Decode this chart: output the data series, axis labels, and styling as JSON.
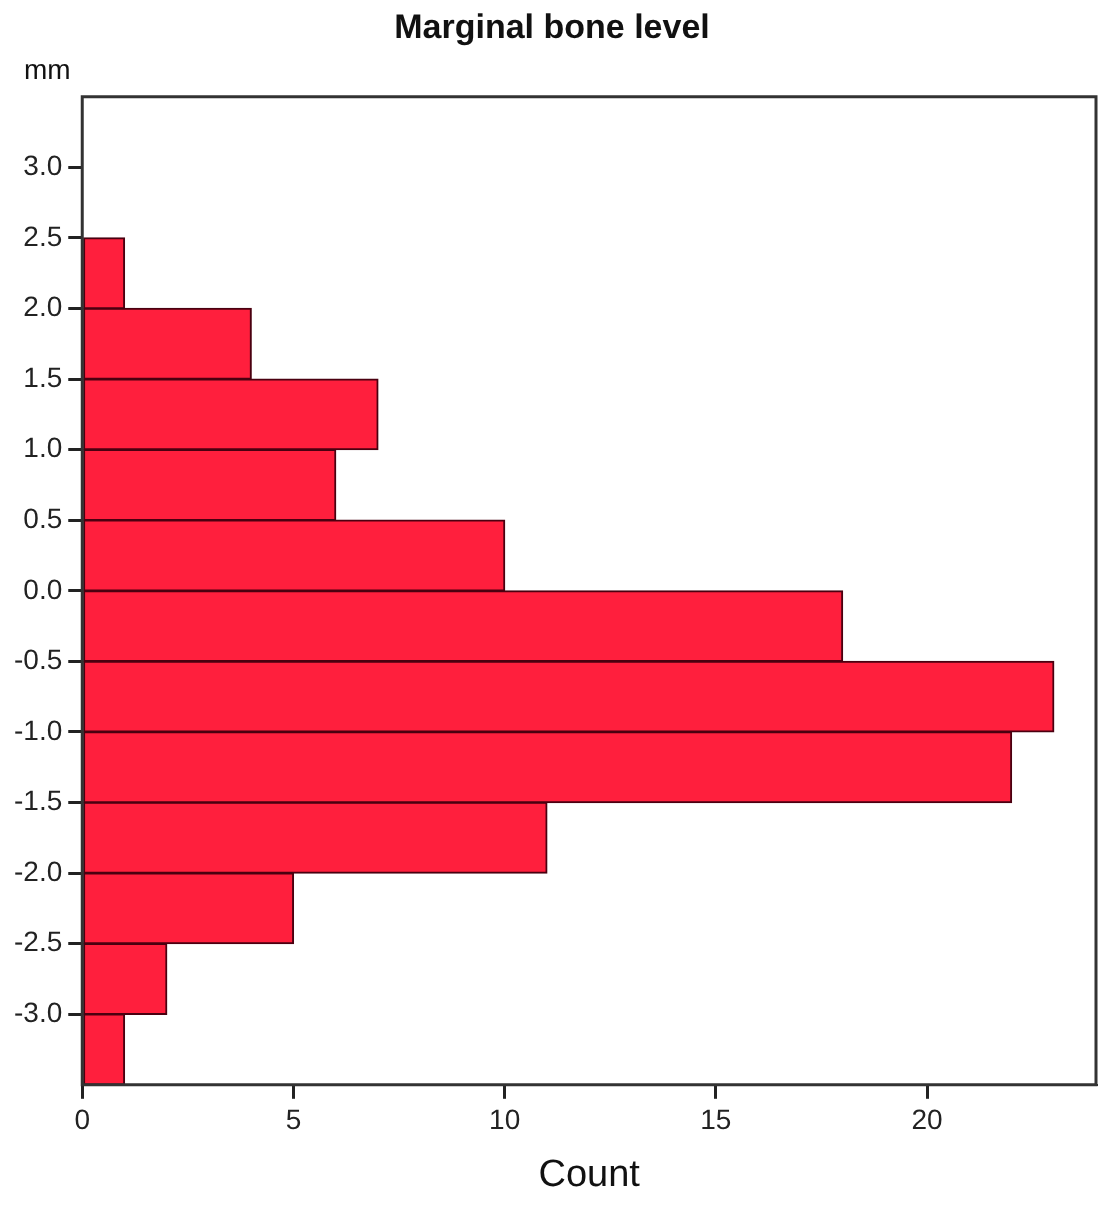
{
  "chart_data": {
    "type": "histogram",
    "title": "Marginal bone level",
    "ylabel": "mm",
    "xlabel": "Count",
    "orientation": "horizontal",
    "bins": [
      -3.5,
      -3.0,
      -2.5,
      -2.0,
      -1.5,
      -1.0,
      -0.5,
      0.0,
      0.5,
      1.0,
      1.5,
      2.0,
      2.5
    ],
    "values": [
      1,
      2,
      5,
      11,
      22,
      23,
      18,
      10,
      6,
      7,
      4,
      1
    ],
    "color": "#ff1f3d",
    "xlim": [
      0,
      24
    ],
    "xticks": [
      0,
      5,
      10,
      15,
      20
    ],
    "ylim": [
      -3.5,
      3.5
    ],
    "yticks": [
      {
        "value": -3,
        "label": "-3.0"
      },
      {
        "value": -2.5,
        "label": "-2.5"
      },
      {
        "value": -2,
        "label": "-2.0"
      },
      {
        "value": -1.5,
        "label": "-1.5"
      },
      {
        "value": -1,
        "label": "-1.0"
      },
      {
        "value": -0.5,
        "label": "-0.5"
      },
      {
        "value": 0,
        "label": "0.0"
      },
      {
        "value": 0.5,
        "label": "0.5"
      },
      {
        "value": 1,
        "label": "1.0"
      },
      {
        "value": 1.5,
        "label": "1.5"
      },
      {
        "value": 2,
        "label": "2.0"
      },
      {
        "value": 2.5,
        "label": "2.5"
      },
      {
        "value": 3,
        "label": "3.0"
      }
    ],
    "grid": false,
    "legend": false
  }
}
